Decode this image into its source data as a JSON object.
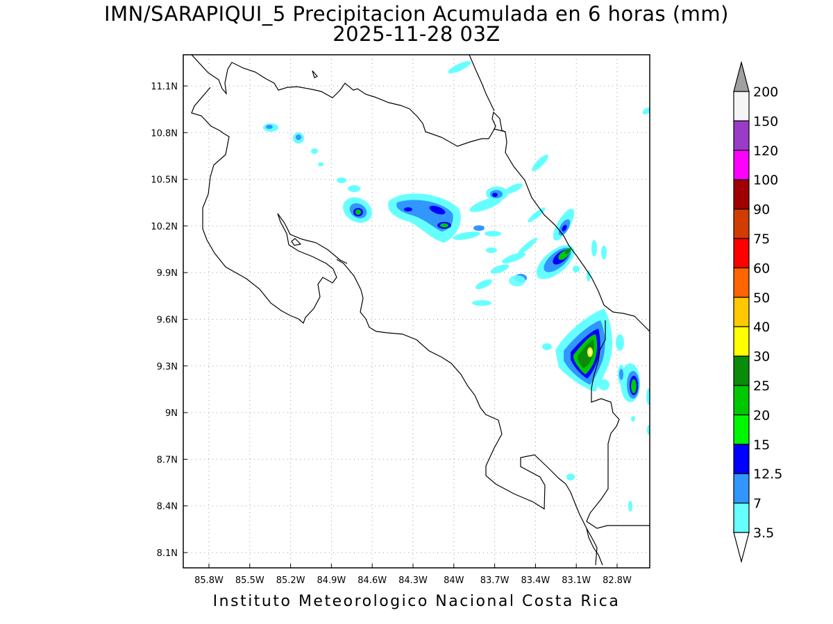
{
  "title": {
    "line1": "IMN/SARAPIQUI_5 Precipitacion Acumulada en 6 horas (mm)",
    "line2": "2025-11-28 03Z"
  },
  "footer": "Instituto Meteorologico Nacional Costa Rica",
  "axes": {
    "longitude_labels": [
      "85.8W",
      "85.5W",
      "85.2W",
      "84.9W",
      "84.6W",
      "84.3W",
      "84W",
      "83.7W",
      "83.4W",
      "83.1W",
      "82.8W"
    ],
    "latitude_labels": [
      "11.1N",
      "10.8N",
      "10.5N",
      "10.2N",
      "9.9N",
      "9.6N",
      "9.3N",
      "9N",
      "8.7N",
      "8.4N",
      "8.1N"
    ]
  },
  "legend": {
    "levels": [
      {
        "label": "200",
        "color": "#f5f5f5"
      },
      {
        "label": "150",
        "color": "#9a3cc8"
      },
      {
        "label": "120",
        "color": "#ff00ff"
      },
      {
        "label": "100",
        "color": "#a00000"
      },
      {
        "label": "90",
        "color": "#d23c00"
      },
      {
        "label": "75",
        "color": "#ff0000"
      },
      {
        "label": "60",
        "color": "#ff6400"
      },
      {
        "label": "50",
        "color": "#ffc800"
      },
      {
        "label": "40",
        "color": "#ffff00"
      },
      {
        "label": "30",
        "color": "#0a8c0a"
      },
      {
        "label": "25",
        "color": "#00c800"
      },
      {
        "label": "20",
        "color": "#00f500"
      },
      {
        "label": "15",
        "color": "#0000ff"
      },
      {
        "label": "12.5",
        "color": "#3296ff"
      },
      {
        "label": "7",
        "color": "#66ffff"
      },
      {
        "label": "3.5",
        "color": "#ffffff"
      }
    ],
    "top_arrow_color": "#a0a0a0"
  },
  "colors": {
    "coast": "#000000",
    "grid": "#9a9a9a"
  }
}
